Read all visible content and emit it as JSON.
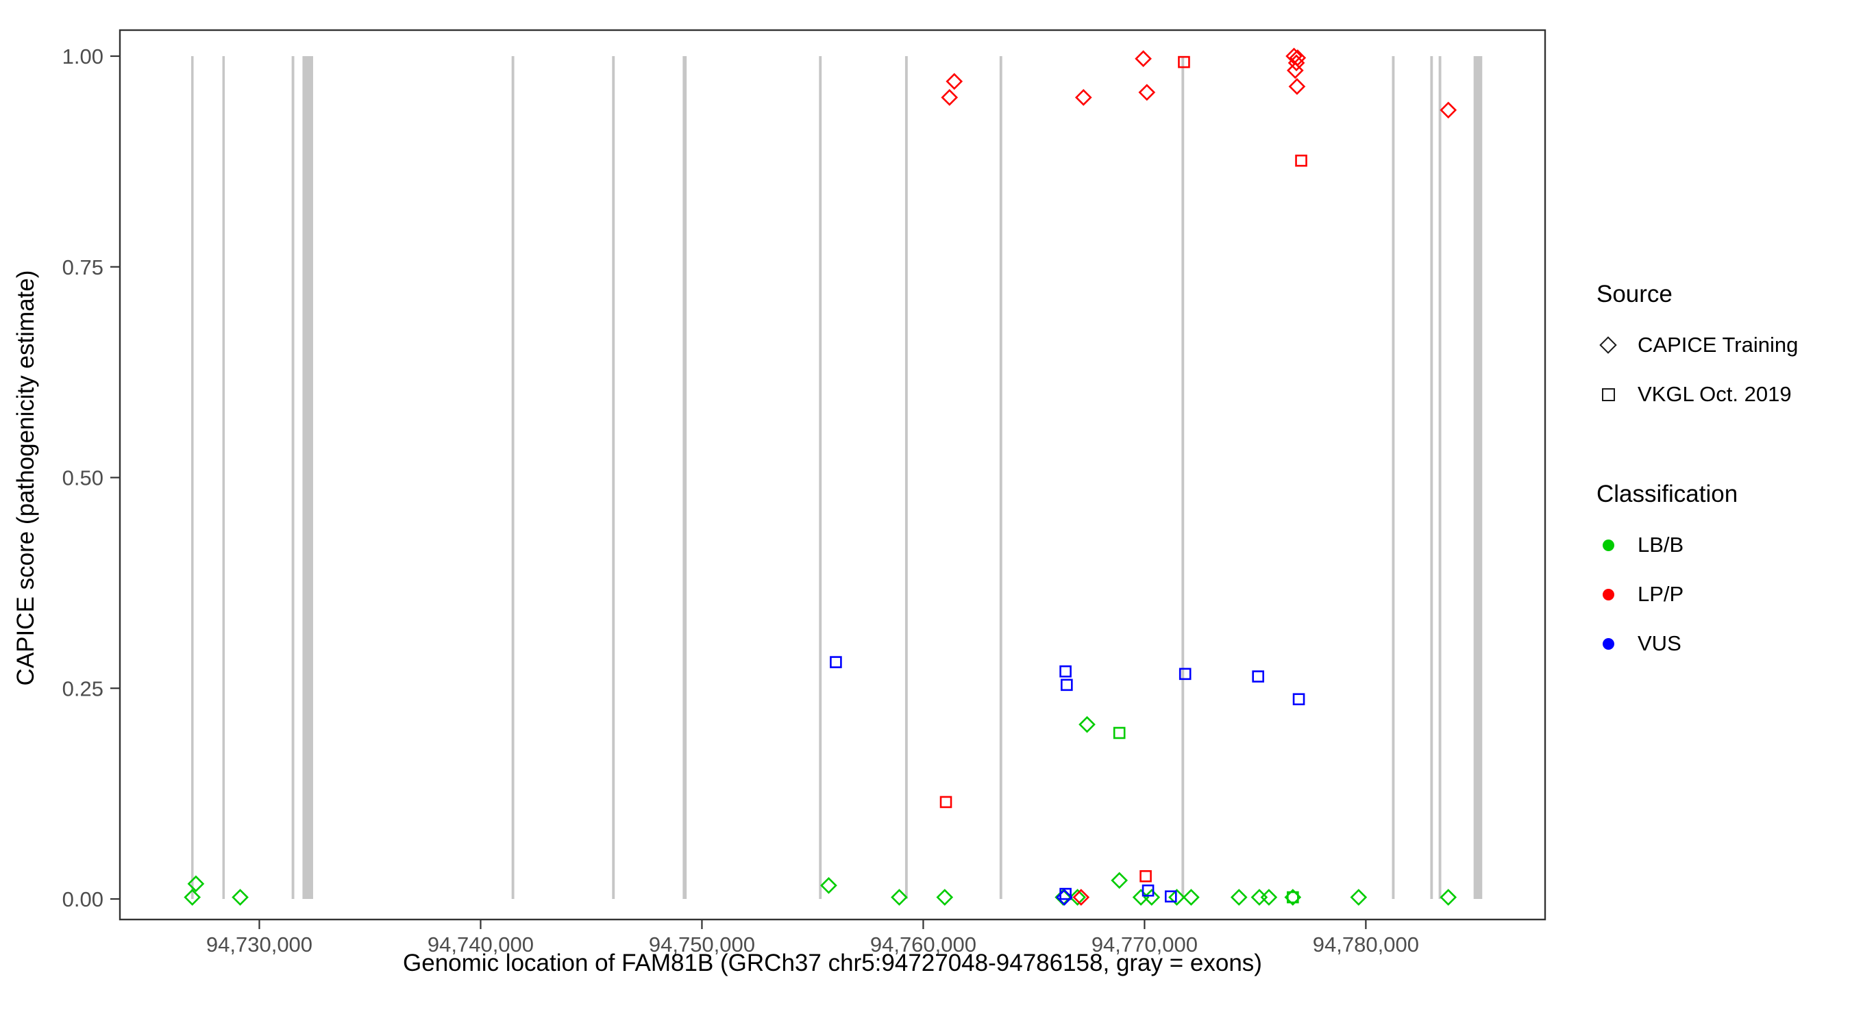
{
  "chart_data": {
    "type": "scatter",
    "title": "",
    "xlabel": "Genomic location of FAM81B (GRCh37 chr5:94727048-94786158, gray = exons)",
    "ylabel": "CAPICE score (pathogenicity estimate)",
    "xlim": [
      94723700,
      94788100
    ],
    "ylim": [
      0,
      1
    ],
    "grid": false,
    "legend_position": "right",
    "x_ticks": [
      {
        "value": 94730000,
        "label": "94,730,000"
      },
      {
        "value": 94740000,
        "label": "94,740,000"
      },
      {
        "value": 94750000,
        "label": "94,750,000"
      },
      {
        "value": 94760000,
        "label": "94,760,000"
      },
      {
        "value": 94770000,
        "label": "94,770,000"
      },
      {
        "value": 94780000,
        "label": "94,780,000"
      }
    ],
    "y_ticks": [
      {
        "value": 0.0,
        "label": "0.00"
      },
      {
        "value": 0.25,
        "label": "0.25"
      },
      {
        "value": 0.5,
        "label": "0.50"
      },
      {
        "value": 0.75,
        "label": "0.75"
      },
      {
        "value": 1.0,
        "label": "1.00"
      }
    ],
    "style": {
      "exon_color": "#C6C6C6",
      "panel_border_color": "#333333",
      "tick_color": "#333333",
      "tick_label_color": "#4D4D4D",
      "background": "#FFFFFF"
    },
    "exons": [
      [
        94726920,
        94727030
      ],
      [
        94728330,
        94728440
      ],
      [
        94731460,
        94731580
      ],
      [
        94731950,
        94732430
      ],
      [
        94741400,
        94741520
      ],
      [
        94745940,
        94746060
      ],
      [
        94749130,
        94749310
      ],
      [
        94755290,
        94755410
      ],
      [
        94759180,
        94759300
      ],
      [
        94763450,
        94763570
      ],
      [
        94771670,
        94771790
      ],
      [
        94781180,
        94781300
      ],
      [
        94782910,
        94783030
      ],
      [
        94783290,
        94783410
      ],
      [
        94784870,
        94785260
      ]
    ],
    "series": [
      {
        "name": "LB/B — CAPICE Training",
        "classification": "LB/B",
        "source": "CAPICE Training",
        "shape": "diamond",
        "color": "#00CC00",
        "points": [
          [
            94727134,
            0.018
          ],
          [
            94726972,
            0.002
          ],
          [
            94729135,
            0.002
          ],
          [
            94755728,
            0.016
          ],
          [
            94758917,
            0.002
          ],
          [
            94760971,
            0.002
          ],
          [
            94767403,
            0.207
          ],
          [
            94766322,
            0.002
          ],
          [
            94766971,
            0.002
          ],
          [
            94768863,
            0.022
          ],
          [
            94769836,
            0.002
          ],
          [
            94770322,
            0.002
          ],
          [
            94771457,
            0.002
          ],
          [
            94772106,
            0.002
          ],
          [
            94774268,
            0.002
          ],
          [
            94775187,
            0.002
          ],
          [
            94775620,
            0.002
          ],
          [
            94776701,
            0.002
          ],
          [
            94779674,
            0.002
          ],
          [
            94783726,
            0.002
          ]
        ]
      },
      {
        "name": "LB/B — VKGL Oct. 2019",
        "classification": "LB/B",
        "source": "VKGL Oct. 2019",
        "shape": "square",
        "color": "#00CC00",
        "points": [
          [
            94768863,
            0.197
          ],
          [
            94776701,
            0.002
          ]
        ]
      },
      {
        "name": "VUS — CAPICE Training",
        "classification": "VUS",
        "source": "CAPICE Training",
        "shape": "diamond",
        "color": "#0000FF",
        "points": [
          [
            94766376,
            0.002
          ]
        ]
      },
      {
        "name": "VUS — VKGL Oct. 2019",
        "classification": "VUS",
        "source": "VKGL Oct. 2019",
        "shape": "square",
        "color": "#0000FF",
        "points": [
          [
            94756052,
            0.281
          ],
          [
            94766430,
            0.27
          ],
          [
            94766484,
            0.254
          ],
          [
            94771836,
            0.267
          ],
          [
            94775133,
            0.264
          ],
          [
            94776971,
            0.237
          ],
          [
            94766430,
            0.006
          ],
          [
            94770160,
            0.01
          ],
          [
            94771188,
            0.003
          ]
        ]
      },
      {
        "name": "LP/P — VKGL Oct. 2019",
        "classification": "LP/P",
        "source": "VKGL Oct. 2019",
        "shape": "square",
        "color": "#FF0000",
        "points": [
          [
            94771782,
            0.993
          ],
          [
            94777079,
            0.876
          ],
          [
            94761025,
            0.115
          ],
          [
            94770052,
            0.027
          ]
        ]
      },
      {
        "name": "LP/P — CAPICE Training",
        "classification": "LP/P",
        "source": "CAPICE Training",
        "shape": "diamond",
        "color": "#FF0000",
        "points": [
          [
            94761187,
            0.951
          ],
          [
            94761403,
            0.97
          ],
          [
            94767241,
            0.951
          ],
          [
            94769944,
            0.997
          ],
          [
            94770106,
            0.957
          ],
          [
            94776755,
            1.0
          ],
          [
            94776917,
            0.998
          ],
          [
            94776863,
            0.992
          ],
          [
            94776809,
            0.983
          ],
          [
            94776890,
            0.964
          ],
          [
            94783726,
            0.936
          ],
          [
            94767133,
            0.002
          ]
        ]
      }
    ],
    "legend": {
      "source": {
        "title": "Source",
        "items": [
          {
            "label": "CAPICE Training",
            "shape": "diamond"
          },
          {
            "label": "VKGL Oct. 2019",
            "shape": "square"
          }
        ]
      },
      "classification": {
        "title": "Classification",
        "items": [
          {
            "label": "LB/B",
            "color": "#00CC00"
          },
          {
            "label": "LP/P",
            "color": "#FF0000"
          },
          {
            "label": "VUS",
            "color": "#0000FF"
          }
        ]
      }
    }
  }
}
